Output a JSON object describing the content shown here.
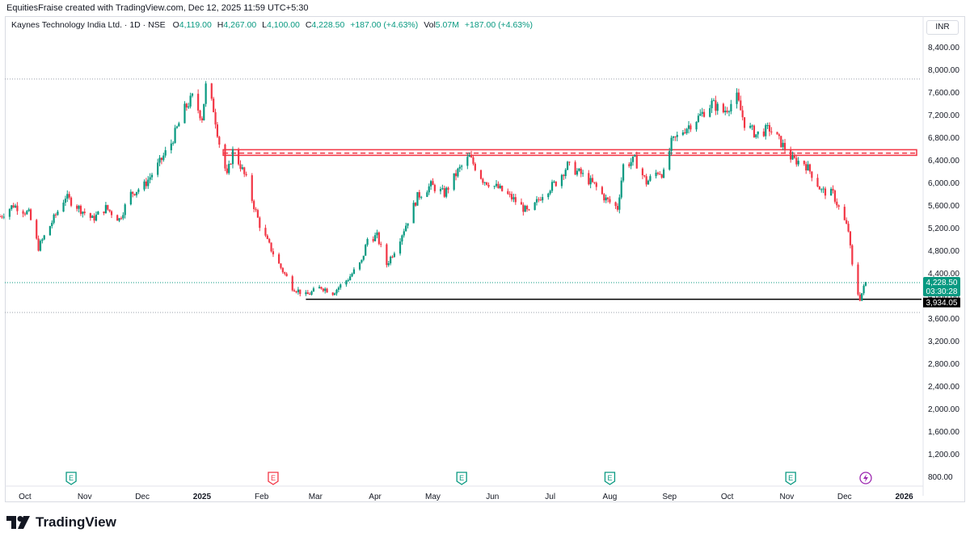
{
  "header": {
    "attribution": "EquitiesFraise created with TradingView.com, Dec 12, 2025 11:59 UTC+5:30"
  },
  "legend": {
    "symbol": "Kaynes Technology India Ltd. · 1D · NSE",
    "o_label": "O",
    "o_value": "4,119.00",
    "h_label": "H",
    "h_value": "4,267.00",
    "l_label": "L",
    "l_value": "4,100.00",
    "c_label": "C",
    "c_value": "4,228.50",
    "change": "+187.00 (+4.63%)",
    "vol_label": "Vol",
    "vol_value": "5.07M",
    "vol_change": "+187.00 (+4.63%)"
  },
  "currency": "INR",
  "price_tag": {
    "price": "4,228.50",
    "countdown": "03:30:28"
  },
  "support_tag": "3,934.05",
  "brand": "TradingView",
  "colors": {
    "up": "#089981",
    "down": "#f23645",
    "zone": "#f23645",
    "support": "#000000"
  },
  "chart_data": {
    "type": "candlestick",
    "y_ticks": [
      "8,400.00",
      "8,000.00",
      "7,600.00",
      "7,200.00",
      "6,800.00",
      "6,400.00",
      "6,000.00",
      "5,600.00",
      "5,200.00",
      "4,800.00",
      "4,400.00",
      "4,000.00",
      "3,600.00",
      "3,200.00",
      "2,800.00",
      "2,400.00",
      "2,000.00",
      "1,600.00",
      "1,200.00",
      "800.00"
    ],
    "y_tick_values": [
      8400,
      8000,
      7600,
      7200,
      6800,
      6400,
      6000,
      5600,
      5200,
      4800,
      4400,
      4000,
      3600,
      3200,
      2800,
      2400,
      2000,
      1600,
      1200,
      800
    ],
    "ylim": [
      640,
      8500
    ],
    "x_labels": [
      "Oct",
      "Nov",
      "Dec",
      "2025",
      "Feb",
      "Mar",
      "Apr",
      "May",
      "Jun",
      "Jul",
      "Aug",
      "Sep",
      "Oct",
      "Nov",
      "Dec",
      "2026"
    ],
    "x_label_dates": [
      "2024-10-01",
      "2024-11-01",
      "2024-12-01",
      "2025-01-01",
      "2025-02-01",
      "2025-03-01",
      "2025-04-01",
      "2025-05-01",
      "2025-06-01",
      "2025-07-01",
      "2025-08-01",
      "2025-09-01",
      "2025-10-01",
      "2025-11-01",
      "2025-12-01",
      "2026-01-01"
    ],
    "date_range": [
      "2024-09-18",
      "2026-01-10"
    ],
    "anchors": [
      [
        "2024-09-18",
        5400
      ],
      [
        "2024-09-25",
        5600
      ],
      [
        "2024-10-03",
        5450
      ],
      [
        "2024-10-08",
        4850
      ],
      [
        "2024-10-15",
        5300
      ],
      [
        "2024-10-22",
        5750
      ],
      [
        "2024-10-29",
        5550
      ],
      [
        "2024-11-05",
        5350
      ],
      [
        "2024-11-12",
        5550
      ],
      [
        "2024-11-19",
        5350
      ],
      [
        "2024-11-25",
        5800
      ],
      [
        "2024-12-02",
        5950
      ],
      [
        "2024-12-10",
        6350
      ],
      [
        "2024-12-16",
        6700
      ],
      [
        "2024-12-23",
        7300
      ],
      [
        "2024-12-27",
        7500
      ],
      [
        "2025-01-01",
        7150
      ],
      [
        "2025-01-03",
        7700
      ],
      [
        "2025-01-07",
        7300
      ],
      [
        "2025-01-10",
        6700
      ],
      [
        "2025-01-14",
        6100
      ],
      [
        "2025-01-17",
        6550
      ],
      [
        "2025-01-21",
        6300
      ],
      [
        "2025-01-24",
        6050
      ],
      [
        "2025-01-27",
        5700
      ],
      [
        "2025-01-31",
        5250
      ],
      [
        "2025-02-04",
        4950
      ],
      [
        "2025-02-10",
        4550
      ],
      [
        "2025-02-17",
        4150
      ],
      [
        "2025-02-24",
        4000
      ],
      [
        "2025-03-04",
        4150
      ],
      [
        "2025-03-10",
        4050
      ],
      [
        "2025-03-18",
        4300
      ],
      [
        "2025-03-25",
        4600
      ],
      [
        "2025-03-28",
        5000
      ],
      [
        "2025-04-02",
        5050
      ],
      [
        "2025-04-07",
        4550
      ],
      [
        "2025-04-11",
        4800
      ],
      [
        "2025-04-17",
        5250
      ],
      [
        "2025-04-23",
        5750
      ],
      [
        "2025-04-30",
        5950
      ],
      [
        "2025-05-07",
        5800
      ],
      [
        "2025-05-14",
        6200
      ],
      [
        "2025-05-20",
        6450
      ],
      [
        "2025-05-27",
        6050
      ],
      [
        "2025-06-04",
        5900
      ],
      [
        "2025-06-12",
        5700
      ],
      [
        "2025-06-20",
        5450
      ],
      [
        "2025-06-27",
        5800
      ],
      [
        "2025-07-04",
        6000
      ],
      [
        "2025-07-10",
        6300
      ],
      [
        "2025-07-17",
        6150
      ],
      [
        "2025-07-24",
        5950
      ],
      [
        "2025-07-30",
        5700
      ],
      [
        "2025-08-05",
        5550
      ],
      [
        "2025-08-08",
        6300
      ],
      [
        "2025-08-14",
        6400
      ],
      [
        "2025-08-20",
        6000
      ],
      [
        "2025-08-26",
        6200
      ],
      [
        "2025-08-29",
        6150
      ],
      [
        "2025-09-02",
        6700
      ],
      [
        "2025-09-09",
        6950
      ],
      [
        "2025-09-16",
        7150
      ],
      [
        "2025-09-23",
        7400
      ],
      [
        "2025-09-29",
        7250
      ],
      [
        "2025-10-06",
        7500
      ],
      [
        "2025-10-10",
        7050
      ],
      [
        "2025-10-16",
        6850
      ],
      [
        "2025-10-23",
        6950
      ],
      [
        "2025-10-29",
        6700
      ],
      [
        "2025-11-04",
        6400
      ],
      [
        "2025-11-10",
        6350
      ],
      [
        "2025-11-14",
        6150
      ],
      [
        "2025-11-19",
        5850
      ],
      [
        "2025-11-25",
        5800
      ],
      [
        "2025-11-28",
        5550
      ],
      [
        "2025-12-03",
        5150
      ],
      [
        "2025-12-06",
        4200
      ],
      [
        "2025-12-09",
        3950
      ],
      [
        "2025-12-12",
        4228.5
      ]
    ],
    "annotations": {
      "resistance_zone": [
        6480,
        6580
      ],
      "resistance_mid": 6520,
      "support_line": 3934.05,
      "prev_high_line": 7830,
      "last_price_line": 4228.5,
      "low_dotted_line": 3700
    },
    "events": [
      {
        "date": "2024-10-25",
        "label": "E",
        "color": "#089981"
      },
      {
        "date": "2025-02-07",
        "label": "E",
        "color": "#f23645"
      },
      {
        "date": "2025-05-16",
        "label": "E",
        "color": "#089981"
      },
      {
        "date": "2025-08-01",
        "label": "E",
        "color": "#089981"
      },
      {
        "date": "2025-11-03",
        "label": "E",
        "color": "#089981"
      },
      {
        "date": "2025-12-12",
        "label": "⚡",
        "color": "#9c27b0"
      }
    ]
  }
}
